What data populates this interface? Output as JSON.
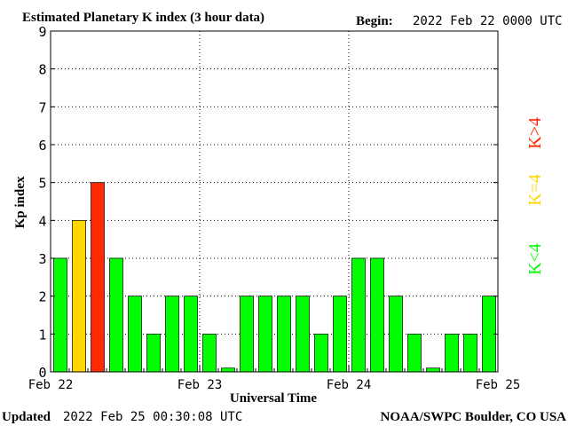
{
  "header": {
    "title": "Estimated Planetary K index (3 hour data)",
    "begin_label": "Begin:",
    "begin_value": "2022 Feb 22 0000 UTC"
  },
  "footer": {
    "updated_label": "Updated",
    "updated_value": "2022 Feb 25 00:30:08 UTC",
    "source": "NOAA/SWPC Boulder, CO USA"
  },
  "legend": {
    "above": "K>4",
    "equal": "K=4",
    "below": "K<4"
  },
  "colors": {
    "below": "#00ff00",
    "equal": "#ffd700",
    "above": "#ff2a00",
    "grid": "#000000",
    "background": "#ffffff"
  },
  "chart_data": {
    "type": "bar",
    "xlabel": "Universal Time",
    "ylabel": "Kp index",
    "ylim": [
      0,
      9
    ],
    "yticks": [
      0,
      1,
      2,
      3,
      4,
      5,
      6,
      7,
      8,
      9
    ],
    "xtick_labels": [
      "Feb 22",
      "Feb 23",
      "Feb 24",
      "Feb 25"
    ],
    "grid": true,
    "values": [
      3,
      4,
      5,
      3,
      2,
      1,
      2,
      2,
      1,
      0.1,
      2,
      2,
      2,
      2,
      1,
      2,
      3,
      3,
      2,
      1,
      0.1,
      1,
      1,
      2
    ]
  }
}
